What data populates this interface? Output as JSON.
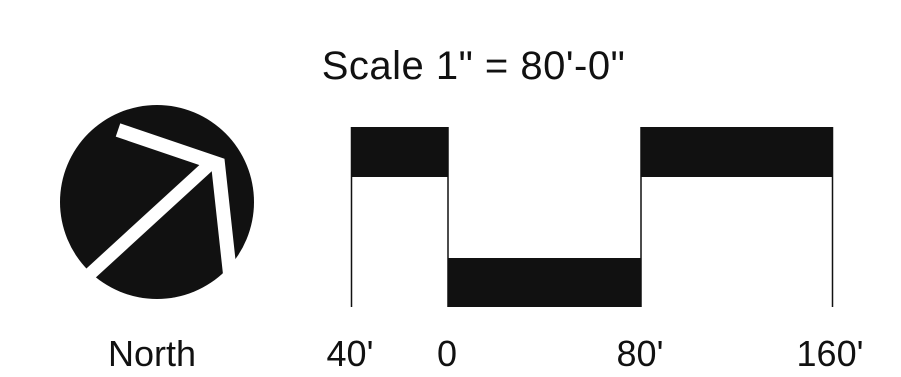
{
  "scale": {
    "title": "Scale 1\" = 80'-0\""
  },
  "north_arrow": {
    "label": "North",
    "icon": "north-arrow-icon",
    "color": "#111111"
  },
  "scale_bar": {
    "ticks": [
      {
        "label": "40'"
      },
      {
        "label": "0"
      },
      {
        "label": "80'"
      },
      {
        "label": "160'"
      }
    ],
    "color": "#111111"
  }
}
